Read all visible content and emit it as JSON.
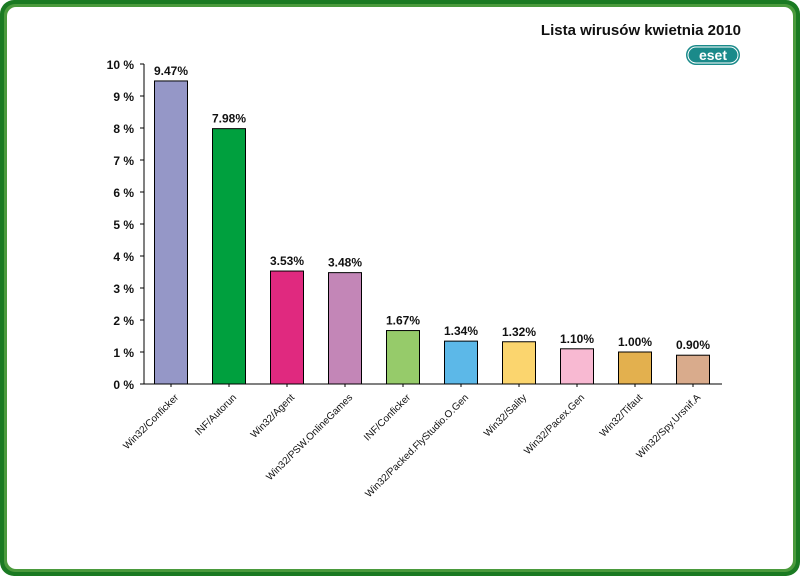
{
  "chart_data": {
    "type": "bar",
    "title": "Lista wirusów kwietnia 2010",
    "categories": [
      "Win32/Conficker",
      "INF/Autorun",
      "Win32/Agent",
      "Win32/PSW.OnlineGames",
      "INF/Conficker",
      "Win32/Packed.FlyStudio.O.Gen",
      "Win32/Sality",
      "Win32/Pacex.Gen",
      "Win32/Tifaut",
      "Win32/Spy.Ursnif.A"
    ],
    "values": [
      9.47,
      7.98,
      3.53,
      3.48,
      1.67,
      1.34,
      1.32,
      1.1,
      1.0,
      0.9
    ],
    "value_labels": [
      "9.47%",
      "7.98%",
      "3.53%",
      "3.48%",
      "1.67%",
      "1.34%",
      "1.32%",
      "1.10%",
      "1.00%",
      "0.90%"
    ],
    "colors": [
      "#9597c7",
      "#00a03e",
      "#e0297f",
      "#c386b7",
      "#96cb6a",
      "#5cb8e8",
      "#fbd56e",
      "#f8b9d2",
      "#e3b04e",
      "#d9ab8c"
    ],
    "ylim": [
      0,
      10
    ],
    "yticks": [
      0,
      1,
      2,
      3,
      4,
      5,
      6,
      7,
      8,
      9,
      10
    ],
    "ytick_labels": [
      "0 %",
      "1 %",
      "2 %",
      "3 %",
      "4 %",
      "5 %",
      "6 %",
      "7 %",
      "8 %",
      "9 %",
      "10 %"
    ],
    "grid": false,
    "legend": "none"
  },
  "logo": {
    "text": "eset",
    "color": "#1a8a8a"
  }
}
